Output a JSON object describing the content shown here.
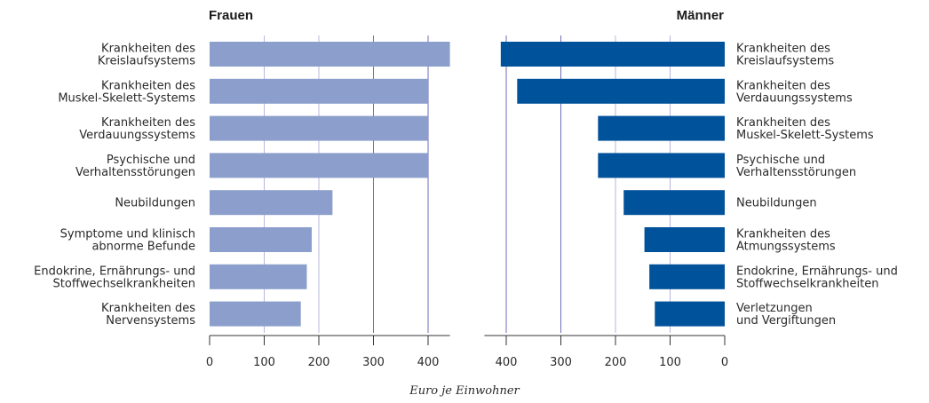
{
  "chart_data": [
    {
      "type": "bar",
      "orientation": "horizontal",
      "title": "Frauen",
      "categories": [
        "Krankheiten des\nKreislaufsystems",
        "Krankheiten des\nMuskel-Skelett-Systems",
        "Krankheiten des\nVerdauungssystems",
        "Psychische und\nVerhaltensstörungen",
        "Neubildungen",
        "Symptome und klinisch\nabnorme Befunde",
        "Endokrine, Ernährungs- und\nStoffwechselkrankheiten",
        "Krankheiten des\nNervensystems"
      ],
      "values": [
        440,
        400,
        400,
        400,
        225,
        187,
        178,
        167
      ],
      "xlim": [
        0,
        440
      ],
      "xticks": [
        0,
        100,
        200,
        300,
        400
      ],
      "grid": true,
      "bar_color": "#8c9fcc",
      "grid_color_light": "#b7b7dd",
      "grid_color_dark": "#6e6eb8"
    },
    {
      "type": "bar",
      "orientation": "horizontal",
      "direction": "reversed",
      "title": "Männer",
      "categories": [
        "Krankheiten des\nKreislaufsystems",
        "Krankheiten des\nVerdauungssystems",
        "Krankheiten des\nMuskel-Skelett-Systems",
        "Psychische und\nVerhaltensstörungen",
        "Neubildungen",
        "Krankheiten des\nAtmungssystems",
        "Endokrine, Ernährungs- und\nStoffwechselkrankheiten",
        "Verletzungen\nund Vergiftungen"
      ],
      "values": [
        410,
        380,
        232,
        232,
        185,
        147,
        138,
        128
      ],
      "xlim": [
        0,
        440
      ],
      "xticks": [
        400,
        300,
        200,
        100,
        0
      ],
      "grid": true,
      "bar_color": "#00529b",
      "grid_color_light": "#b7b7dd",
      "grid_color_dark": "#6e6eb8"
    }
  ],
  "xlabel": "Euro je Einwohner"
}
